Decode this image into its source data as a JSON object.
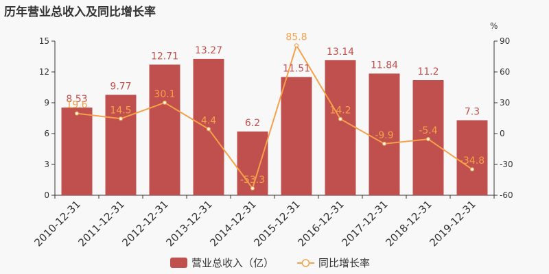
{
  "title": "历年营业总收入及同比增长率",
  "colors": {
    "bar": "#c0504d",
    "bar_label": "#c0504d",
    "line": "#f5a04a",
    "line_label": "#f5a04a",
    "axis": "#333333",
    "background": "#f9f8f8"
  },
  "chart_data": {
    "type": "bar",
    "title": "历年营业总收入及同比增长率",
    "categories": [
      "2010-12-31",
      "2011-12-31",
      "2012-12-31",
      "2013-12-31",
      "2014-12-31",
      "2015-12-31",
      "2016-12-31",
      "2017-12-31",
      "2018-12-31",
      "2019-12-31"
    ],
    "series": [
      {
        "name": "营业总收入（亿）",
        "type": "bar",
        "axis": "left",
        "values": [
          8.53,
          9.77,
          12.71,
          13.27,
          6.2,
          11.51,
          13.14,
          11.84,
          11.2,
          7.3
        ],
        "labels": [
          "8.53",
          "9.77",
          "12.71",
          "13.27",
          "6.2",
          "11.51",
          "13.14",
          "11.84",
          "11.2",
          "7.3"
        ]
      },
      {
        "name": "同比增长率",
        "type": "line",
        "axis": "right",
        "values": [
          19.6,
          14.5,
          30.1,
          4.4,
          -53.3,
          85.8,
          14.2,
          -9.9,
          -5.4,
          -34.8
        ],
        "labels": [
          "19.6",
          "14.5",
          "30.1",
          "4.4",
          "-53.3",
          "85.8",
          "14.2",
          "-9.9",
          "-5.4",
          "-34.8"
        ]
      }
    ],
    "y_left": {
      "min": 0,
      "max": 15,
      "ticks": [
        0,
        3,
        6,
        9,
        12,
        15
      ]
    },
    "y_right": {
      "min": -60,
      "max": 90,
      "ticks": [
        -60,
        -30,
        0,
        30,
        60,
        90
      ],
      "unit": "%"
    },
    "legend": {
      "position": "bottom"
    },
    "grid": false
  }
}
